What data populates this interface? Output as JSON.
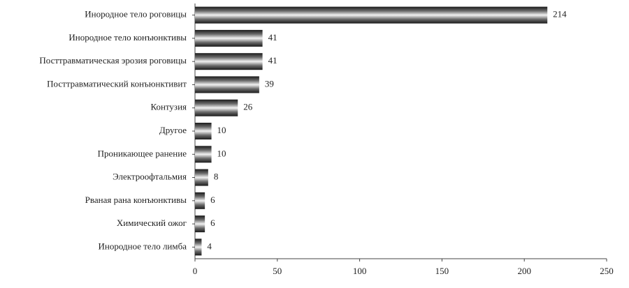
{
  "chart_data": {
    "type": "bar",
    "orientation": "horizontal",
    "categories": [
      "Инородное тело роговицы",
      "Инородное тело конъюнктивы",
      "Посттравматическая эрозия роговицы",
      "Посттравматический конъюнктивит",
      "Контузия",
      "Другое",
      "Проникающее ранение",
      "Электроофтальмия",
      "Рваная рана конъюнктивы",
      "Химический ожог",
      "Инородное тело лимба"
    ],
    "values": [
      214,
      41,
      41,
      39,
      26,
      10,
      10,
      8,
      6,
      6,
      4
    ],
    "xlim": [
      0,
      250
    ],
    "xticks": [
      0,
      50,
      100,
      150,
      200,
      250
    ],
    "grid": false
  }
}
